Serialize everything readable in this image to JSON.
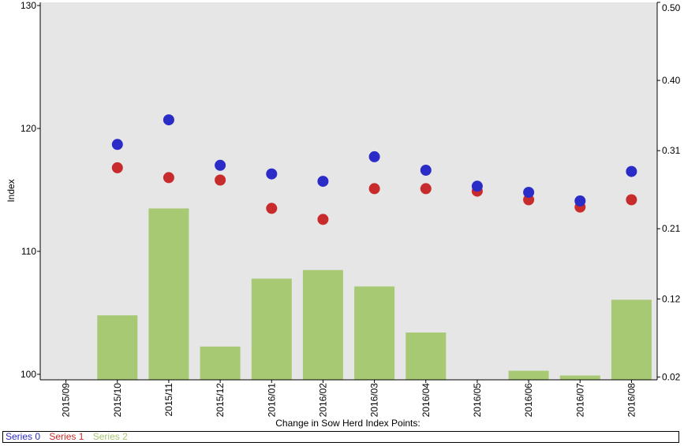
{
  "chart_data": {
    "type": "bar+scatter",
    "categories": [
      "2015/09",
      "2015/10",
      "2015/11",
      "2015/12",
      "2016/01",
      "2016/02",
      "2016/03",
      "2016/04",
      "2016/05",
      "2016/06",
      "2016/07",
      "2016/08"
    ],
    "xlabel": "Change in Sow Herd Index Points:",
    "ylabel": "Index",
    "y_left": {
      "min": 100,
      "max": 130,
      "ticks": [
        "100",
        "110",
        "120",
        "130"
      ]
    },
    "y_right": {
      "ticks": [
        {
          "label": "0.02",
          "value": 0.02
        },
        {
          "label": "0.12",
          "value": 0.12
        },
        {
          "label": "0.21",
          "value": 0.21
        },
        {
          "label": "0.31",
          "value": 0.31
        },
        {
          "label": "0.40",
          "value": 0.4
        },
        {
          "label": "0.50",
          "value": 0.5
        }
      ],
      "min": 0.0164,
      "max": 0.5
    },
    "series": [
      {
        "name": "Series 0",
        "kind": "scatter",
        "axis": "left",
        "color": "#2b2bc8",
        "values": [
          null,
          118.7,
          120.7,
          117.0,
          116.3,
          115.7,
          117.7,
          116.6,
          115.3,
          114.8,
          114.1,
          116.5
        ]
      },
      {
        "name": "Series 1",
        "kind": "scatter",
        "axis": "left",
        "color": "#c82b2b",
        "values": [
          null,
          116.8,
          116.0,
          115.8,
          113.5,
          112.6,
          115.1,
          115.1,
          114.9,
          114.2,
          113.6,
          114.2
        ]
      },
      {
        "name": "Series 2",
        "kind": "bar",
        "axis": "right",
        "color": "#a8c973",
        "values": [
          null,
          0.099,
          0.236,
          0.059,
          0.146,
          0.157,
          0.136,
          0.077,
          null,
          0.028,
          0.022,
          0.119
        ]
      }
    ],
    "grid": false,
    "legend_position": "bottom"
  }
}
